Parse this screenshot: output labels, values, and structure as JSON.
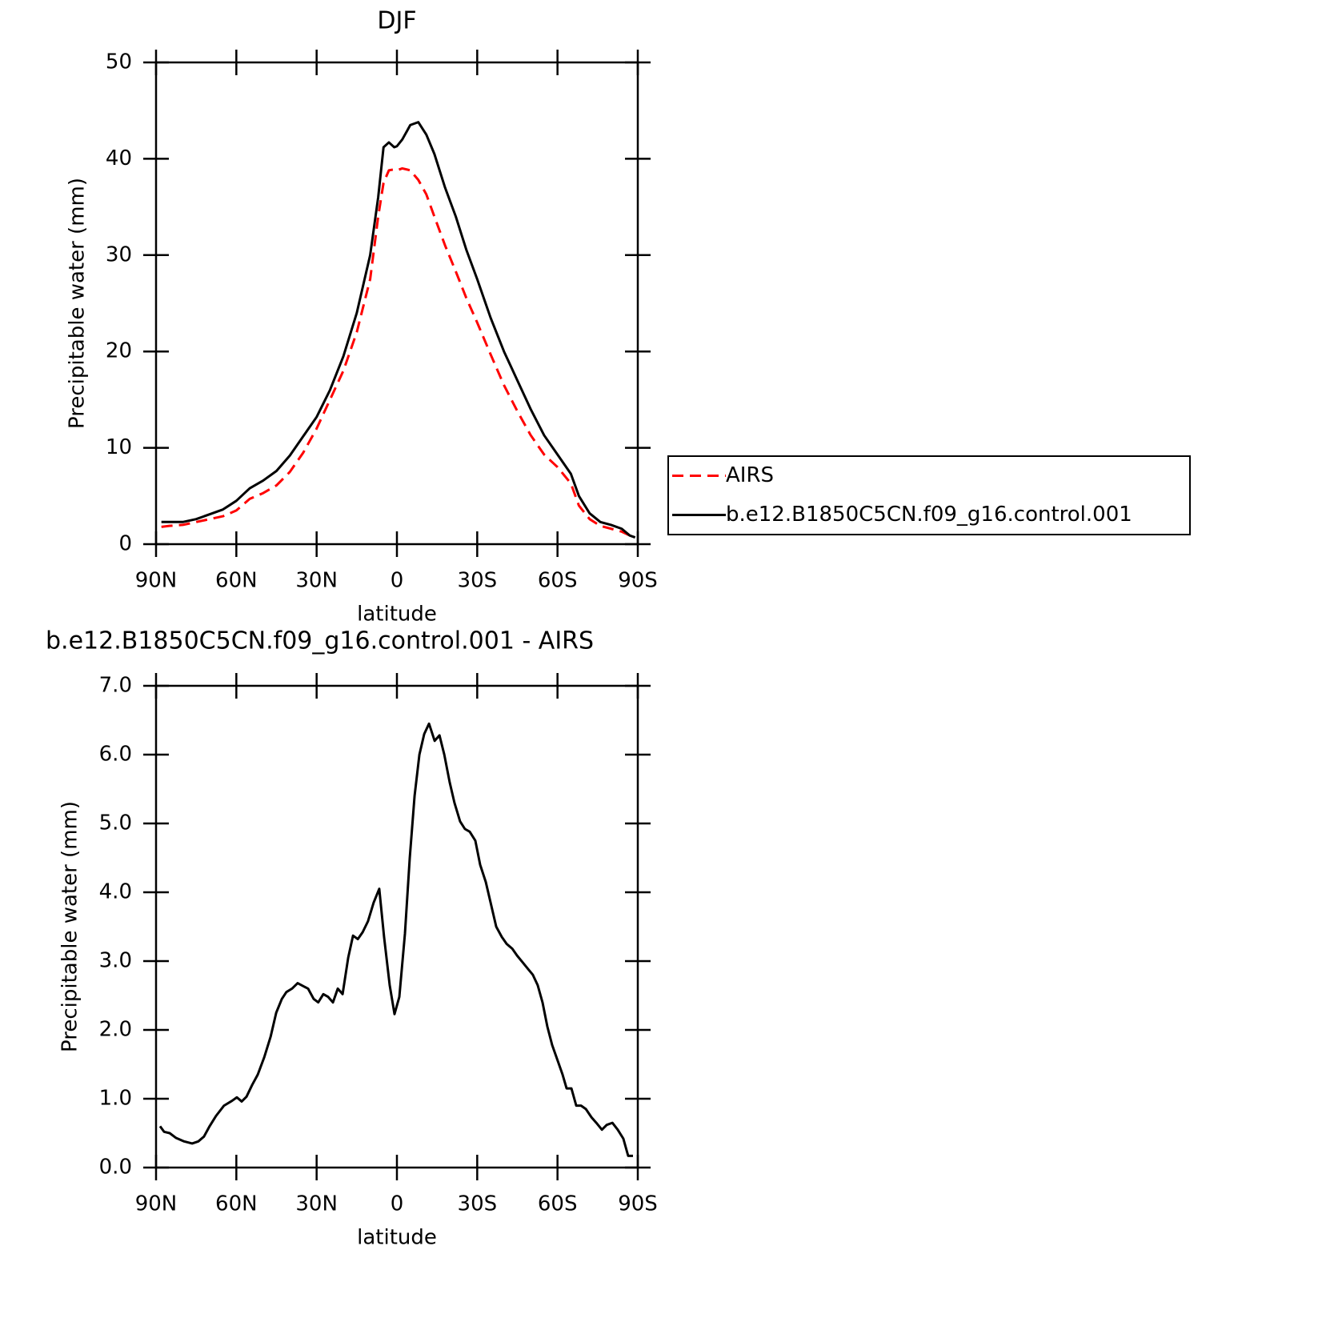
{
  "chart_data": [
    {
      "type": "line",
      "title": "DJF",
      "xlabel": "latitude",
      "ylabel": "Precipitable water (mm)",
      "x": [
        88,
        85,
        80,
        75,
        70,
        65,
        60,
        55,
        50,
        45,
        40,
        35,
        30,
        25,
        20,
        15,
        10,
        7,
        5,
        3,
        1,
        0,
        -2,
        -5,
        -8,
        -11,
        -14,
        -18,
        -22,
        -26,
        -30,
        -35,
        -40,
        -45,
        -50,
        -55,
        -60,
        -65,
        -68,
        -72,
        -76,
        -80,
        -84,
        -87,
        -89
      ],
      "series": [
        {
          "name": "AIRS",
          "color": "#ff0000",
          "line_style": "dashed",
          "values": [
            1.8,
            1.9,
            2,
            2.3,
            2.6,
            2.9,
            3.5,
            4.7,
            5.3,
            6.1,
            7.5,
            9.5,
            12,
            15,
            18,
            22,
            27.5,
            34,
            37.5,
            38.8,
            38.9,
            38.8,
            39,
            38.8,
            37.8,
            36.3,
            34,
            31,
            28.3,
            25.5,
            23,
            19.7,
            16.5,
            13.8,
            11.3,
            9.3,
            8,
            6.3,
            4,
            2.6,
            1.9,
            1.6,
            1.3,
            0.9,
            0.6
          ]
        },
        {
          "name": "b.e12.B1850C5CN.f09_g16.control.001",
          "color": "#000000",
          "line_style": "solid",
          "values": [
            2.3,
            2.3,
            2.3,
            2.6,
            3.1,
            3.6,
            4.5,
            5.8,
            6.6,
            7.6,
            9.2,
            11.2,
            13.2,
            16,
            19.5,
            24,
            30,
            36,
            41.2,
            41.7,
            41.2,
            41.3,
            42,
            43.5,
            43.8,
            42.5,
            40.5,
            37,
            34,
            30.5,
            27.5,
            23.5,
            20,
            17,
            14,
            11.3,
            9.3,
            7.3,
            5,
            3.2,
            2.3,
            2,
            1.6,
            0.9,
            0.7
          ]
        }
      ],
      "xlim": [
        90,
        -90
      ],
      "xticks": [
        {
          "value": 90,
          "label": "90N"
        },
        {
          "value": 60,
          "label": "60N"
        },
        {
          "value": 30,
          "label": "30N"
        },
        0,
        {
          "value": -30,
          "label": "30S"
        },
        {
          "value": -60,
          "label": "60S"
        },
        {
          "value": -90,
          "label": "90S"
        }
      ],
      "ylim": [
        0,
        50
      ],
      "yticks": [
        0,
        10,
        20,
        30,
        40,
        50
      ],
      "legend": "right"
    },
    {
      "type": "line",
      "title": "b.e12.B1850C5CN.f09_g16.control.001 - AIRS",
      "xlabel": "latitude",
      "ylabel": "Precipitable water (mm)",
      "x": [
        88.5,
        87,
        84.9,
        82.5,
        79.5,
        76.5,
        74.2,
        72.1,
        70,
        67.6,
        64.6,
        61.6,
        59.8,
        58,
        56.2,
        54.1,
        52,
        49.6,
        47.2,
        45.1,
        43,
        41.3,
        39.2,
        37.1,
        34.7,
        33.2,
        31.1,
        29.4,
        27.5,
        25.7,
        23.9,
        22.1,
        20.3,
        18.2,
        16.4,
        14.6,
        12.8,
        10.8,
        8.7,
        6.6,
        4.8,
        2.7,
        0.9,
        -0.9,
        -3,
        -4.8,
        -6.6,
        -8.4,
        -10.2,
        -12,
        -14.1,
        -15.9,
        -17.7,
        -19.7,
        -21.5,
        -23.6,
        -25.4,
        -27.2,
        -29.3,
        -31.1,
        -33.2,
        -35,
        -37.1,
        -39.2,
        -41,
        -43.1,
        -44.9,
        -47,
        -49.1,
        -50.8,
        -52.6,
        -54.4,
        -56.2,
        -58,
        -60.1,
        -61.9,
        -63.4,
        -65.2,
        -67,
        -68.8,
        -70.6,
        -72.7,
        -74.5,
        -76.6,
        -78.4,
        -80.5,
        -82.5,
        -84.6,
        -86.4,
        -88.2
      ],
      "series": [
        {
          "color": "#000000",
          "line_style": "solid",
          "values": [
            0.6,
            0.52,
            0.5,
            0.43,
            0.38,
            0.35,
            0.38,
            0.45,
            0.6,
            0.75,
            0.9,
            0.97,
            1.02,
            0.96,
            1.03,
            1.2,
            1.35,
            1.6,
            1.9,
            2.25,
            2.45,
            2.55,
            2.6,
            2.68,
            2.63,
            2.6,
            2.45,
            2.4,
            2.52,
            2.48,
            2.4,
            2.6,
            2.52,
            3.05,
            3.37,
            3.32,
            3.42,
            3.58,
            3.85,
            4.05,
            3.35,
            2.65,
            2.23,
            2.48,
            3.4,
            4.5,
            5.4,
            6,
            6.3,
            6.45,
            6.2,
            6.28,
            6,
            5.6,
            5.3,
            5.03,
            4.92,
            4.88,
            4.75,
            4.4,
            4.15,
            3.85,
            3.5,
            3.35,
            3.25,
            3.18,
            3.08,
            2.98,
            2.88,
            2.8,
            2.65,
            2.4,
            2.05,
            1.78,
            1.55,
            1.35,
            1.15,
            1.15,
            0.9,
            0.9,
            0.85,
            0.73,
            0.65,
            0.55,
            0.62,
            0.65,
            0.55,
            0.42,
            0.17,
            0.17
          ]
        }
      ],
      "xlim": [
        90,
        -90
      ],
      "xticks": [
        {
          "value": 90,
          "label": "90N"
        },
        {
          "value": 60,
          "label": "60N"
        },
        {
          "value": 30,
          "label": "30N"
        },
        0,
        {
          "value": -30,
          "label": "30S"
        },
        {
          "value": -60,
          "label": "60S"
        },
        {
          "value": -90,
          "label": "90S"
        }
      ],
      "ylim": [
        0,
        7
      ],
      "yticks": [
        {
          "value": 0,
          "label": "0.0"
        },
        {
          "value": 1,
          "label": "1.0"
        },
        {
          "value": 2,
          "label": "2.0"
        },
        {
          "value": 3,
          "label": "3.0"
        },
        {
          "value": 4,
          "label": "4.0"
        },
        {
          "value": 5,
          "label": "5.0"
        },
        {
          "value": 6,
          "label": "6.0"
        },
        {
          "value": 7,
          "label": "7.0"
        }
      ]
    }
  ]
}
